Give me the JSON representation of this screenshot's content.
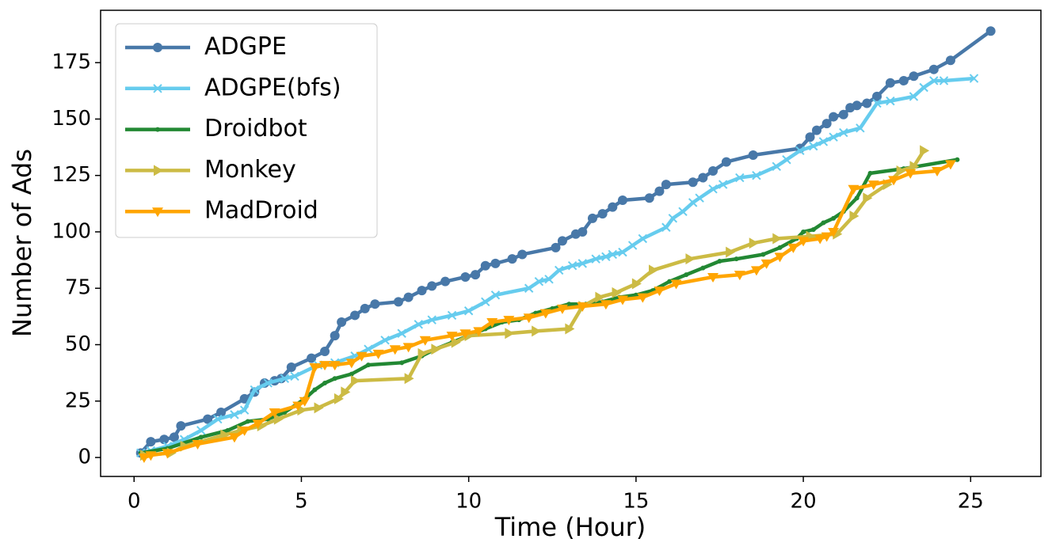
{
  "chart_data": {
    "type": "line",
    "xlabel": "Time (Hour)",
    "ylabel": "Number of Ads",
    "xlim": [
      -1.0,
      27.1
    ],
    "ylim": [
      -8.4,
      198.2
    ],
    "xticks": [
      0,
      5,
      10,
      15,
      20,
      25
    ],
    "yticks": [
      0,
      25,
      50,
      75,
      100,
      125,
      150,
      175
    ],
    "legend": "upper left",
    "series": [
      {
        "name": "ADGPE",
        "color": "#4878a8",
        "marker": "circle",
        "x": [
          0.2,
          0.5,
          0.9,
          1.2,
          1.4,
          2.2,
          2.6,
          3.3,
          3.6,
          3.9,
          4.2,
          4.4,
          4.7,
          5.3,
          5.7,
          6.0,
          6.2,
          6.6,
          6.9,
          7.2,
          7.9,
          8.2,
          8.6,
          8.9,
          9.3,
          9.9,
          10.2,
          10.5,
          10.8,
          11.3,
          11.6,
          12.6,
          12.8,
          13.2,
          13.4,
          13.7,
          14.0,
          14.3,
          14.6,
          15.4,
          15.7,
          15.9,
          16.7,
          17.0,
          17.3,
          17.7,
          18.5,
          19.9,
          20.2,
          20.4,
          20.7,
          20.9,
          21.2,
          21.4,
          21.6,
          21.9,
          22.2,
          22.6,
          23.0,
          23.3,
          23.9,
          24.4,
          25.6
        ],
        "values": [
          2,
          7,
          8,
          9,
          14,
          17,
          20,
          26,
          29,
          33,
          34,
          35,
          40,
          44,
          47,
          54,
          60,
          63,
          66,
          68,
          69,
          71,
          74,
          76,
          78,
          80,
          81,
          85,
          86,
          88,
          90,
          93,
          96,
          99,
          100,
          106,
          108,
          111,
          114,
          115,
          118,
          121,
          122,
          124,
          127,
          131,
          134,
          137,
          142,
          145,
          148,
          151,
          152,
          155,
          156,
          157,
          160,
          166,
          167,
          169,
          172,
          176,
          189
        ]
      },
      {
        "name": "ADGPE(bfs)",
        "color": "#66ccee",
        "marker": "x",
        "x": [
          0.2,
          0.5,
          1.0,
          1.5,
          2.0,
          2.5,
          3.0,
          3.3,
          3.6,
          4.0,
          4.5,
          4.8,
          5.5,
          6.0,
          6.6,
          7.0,
          7.5,
          8.0,
          8.5,
          8.9,
          9.5,
          10.0,
          10.5,
          10.8,
          11.8,
          12.1,
          12.4,
          12.7,
          13.1,
          13.4,
          13.8,
          14.1,
          14.3,
          14.6,
          14.9,
          15.2,
          15.9,
          16.1,
          16.4,
          16.7,
          16.9,
          17.3,
          17.6,
          18.1,
          18.6,
          19.2,
          19.5,
          19.9,
          20.3,
          20.6,
          20.9,
          21.2,
          21.7,
          22.2,
          22.6,
          23.3,
          23.6,
          23.9,
          24.2,
          25.1
        ],
        "values": [
          2,
          3,
          5,
          8,
          12,
          17,
          19,
          21,
          30,
          33,
          35,
          36,
          41,
          42,
          45,
          48,
          52,
          55,
          59,
          61,
          63,
          65,
          69,
          72,
          75,
          78,
          79,
          83,
          85,
          86,
          88,
          89,
          90,
          91,
          94,
          97,
          102,
          106,
          109,
          113,
          115,
          119,
          121,
          124,
          125,
          129,
          132,
          136,
          138,
          140,
          142,
          144,
          146,
          157,
          158,
          160,
          164,
          167,
          167,
          168
        ]
      },
      {
        "name": "Droidbot",
        "color": "#228833",
        "marker": "dot",
        "x": [
          0.2,
          1.0,
          2.0,
          2.8,
          3.4,
          4.0,
          4.5,
          5.1,
          5.4,
          5.7,
          6.0,
          6.5,
          7.0,
          8.0,
          8.6,
          9.0,
          9.5,
          10.0,
          10.5,
          11.0,
          11.5,
          12.0,
          12.5,
          13.0,
          13.5,
          14.0,
          14.5,
          15.0,
          15.5,
          16.0,
          16.5,
          17.0,
          17.5,
          18.0,
          18.8,
          19.3,
          19.8,
          20.0,
          20.3,
          20.6,
          20.9,
          21.2,
          21.6,
          22.0,
          23.0,
          24.6
        ],
        "values": [
          2,
          4,
          9,
          12,
          16,
          17,
          20,
          26,
          30,
          33,
          35,
          37,
          41,
          42,
          45,
          48,
          51,
          54,
          57,
          60,
          61,
          64,
          66,
          68,
          68,
          69,
          71,
          72,
          74,
          78,
          81,
          84,
          87,
          88,
          90,
          93,
          97,
          100,
          101,
          104,
          106,
          109,
          115,
          126,
          128,
          132
        ]
      },
      {
        "name": "Monkey",
        "color": "#ccbb44",
        "marker": "triangle-right",
        "x": [
          0.3,
          1.1,
          1.5,
          2.7,
          3.2,
          3.8,
          4.3,
          5.0,
          5.5,
          6.1,
          6.3,
          6.6,
          8.2,
          8.6,
          9.0,
          9.6,
          10.0,
          11.2,
          12.0,
          13.0,
          13.4,
          13.9,
          14.4,
          15.0,
          15.5,
          16.6,
          17.8,
          18.5,
          19.2,
          20.2,
          21.0,
          21.5,
          21.9,
          22.5,
          22.9,
          23.3,
          23.6
        ],
        "values": [
          1,
          2,
          5,
          10,
          12,
          14,
          17,
          21,
          22,
          26,
          29,
          34,
          35,
          46,
          48,
          51,
          54,
          55,
          56,
          57,
          67,
          71,
          73,
          77,
          83,
          88,
          91,
          95,
          97,
          98,
          99,
          107,
          115,
          121,
          127,
          129,
          136
        ]
      },
      {
        "name": "MadDroid",
        "color": "#ffa500",
        "marker": "triangle-down",
        "x": [
          0.3,
          0.5,
          1.0,
          1.9,
          3.0,
          3.3,
          3.7,
          4.2,
          4.9,
          5.1,
          5.4,
          5.7,
          6.0,
          6.5,
          6.8,
          7.3,
          7.8,
          8.2,
          8.7,
          9.5,
          9.9,
          10.3,
          10.7,
          11.2,
          11.8,
          12.3,
          12.8,
          13.4,
          14.1,
          14.6,
          15.2,
          15.7,
          16.2,
          17.3,
          18.1,
          18.6,
          18.9,
          19.3,
          19.7,
          20.0,
          20.5,
          20.7,
          20.9,
          21.5,
          22.1,
          22.7,
          23.2,
          24.0,
          24.4
        ],
        "values": [
          0,
          1,
          2,
          6,
          9,
          12,
          15,
          20,
          23,
          25,
          40,
          41,
          41,
          42,
          45,
          46,
          48,
          49,
          52,
          54,
          55,
          56,
          60,
          61,
          62,
          64,
          66,
          67,
          68,
          70,
          71,
          74,
          77,
          80,
          81,
          83,
          86,
          89,
          93,
          96,
          97,
          98,
          100,
          119,
          121,
          123,
          126,
          127,
          130
        ]
      }
    ]
  }
}
